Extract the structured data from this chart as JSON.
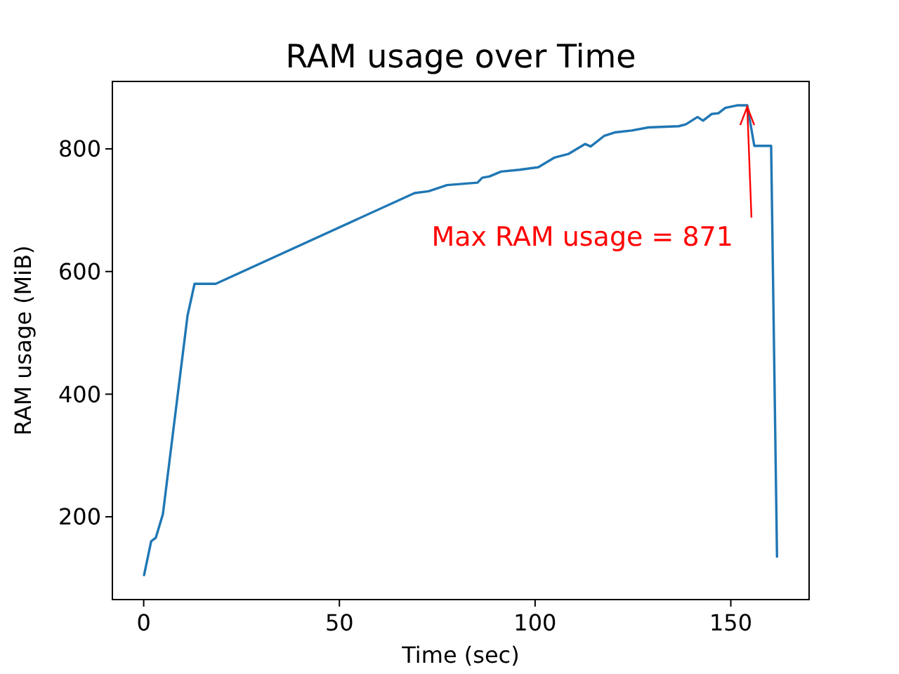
{
  "chart_data": {
    "type": "line",
    "title": "RAM usage over Time",
    "xlabel": "Time (sec)",
    "ylabel": "RAM usage (MiB)",
    "xlim": [
      -8,
      170
    ],
    "ylim": [
      65,
      910
    ],
    "xticks": [
      0,
      50,
      100,
      150
    ],
    "yticks": [
      200,
      400,
      600,
      800
    ],
    "grid": false,
    "marker": "none",
    "line_style": "solid",
    "series": [
      {
        "color": "#1f77b4",
        "x": [
          0.1,
          1.9,
          3.1,
          4.9,
          11.2,
          13.0,
          18.4,
          69.2,
          72.8,
          77.5,
          85.3,
          86.5,
          88.3,
          91.3,
          96.1,
          100.8,
          105.0,
          108.6,
          112.8,
          114.2,
          117.6,
          120.5,
          124.7,
          128.9,
          136.7,
          138.5,
          141.5,
          142.9,
          145.1,
          146.8,
          148.6,
          151.6,
          154.2,
          156.0,
          160.3,
          161.8
        ],
        "values": [
          105,
          160,
          166,
          204,
          528,
          580,
          580,
          728,
          731,
          741,
          745,
          753,
          755,
          763,
          766,
          770,
          786,
          792,
          808,
          804,
          821,
          827,
          830,
          835,
          837,
          840,
          852,
          846,
          857,
          858,
          867,
          871,
          871,
          805,
          805,
          135
        ]
      }
    ],
    "annotations": [
      {
        "text": "Max RAM usage = 871",
        "x": 154.2,
        "y": 871
      }
    ]
  }
}
